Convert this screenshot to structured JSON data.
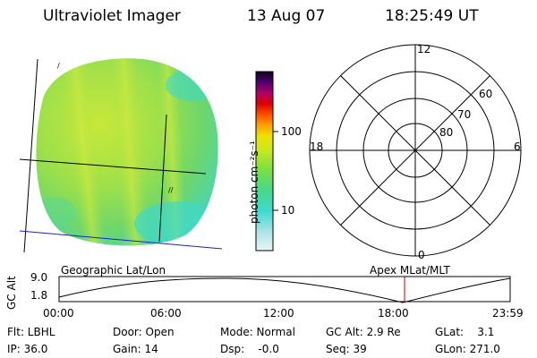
{
  "header": {
    "instrument": "Ultraviolet Imager",
    "date": "13 Aug 07",
    "time": "18:25:49 UT"
  },
  "colorbar": {
    "label": "photon cm⁻²s⁻¹",
    "ticks": [
      "100",
      "10"
    ]
  },
  "polar_plot": {
    "mlt_labels": [
      "12",
      "18",
      "6",
      "0"
    ],
    "lat_labels": [
      "60",
      "70",
      "80"
    ]
  },
  "orbit_plot": {
    "left_label": "Geographic Lat/Lon",
    "right_label": "Apex MLat/MLT",
    "y_axis_label": "GC Alt",
    "y_ticks": [
      "9.0",
      "1.8"
    ],
    "x_ticks": [
      "00:00",
      "06:00",
      "12:00",
      "18:00",
      "23:59"
    ],
    "current_marker_color": "#cc0000"
  },
  "status": {
    "row1": [
      {
        "key": "flt",
        "text": "Flt: LBHL"
      },
      {
        "key": "door",
        "text": "Door: Open"
      },
      {
        "key": "mode",
        "text": "Mode: Normal"
      },
      {
        "key": "gcalt",
        "text": "GC Alt: 2.9 Re"
      },
      {
        "key": "glat",
        "text": "GLat:    3.1"
      }
    ],
    "row2": [
      {
        "key": "ip",
        "text": "IP: 36.0"
      },
      {
        "key": "gain",
        "text": "Gain: 14"
      },
      {
        "key": "dsp",
        "text": "Dsp:    -0.0"
      },
      {
        "key": "seq",
        "text": "Seq: 39"
      },
      {
        "key": "glon",
        "text": "GLon: 271.0"
      }
    ]
  }
}
